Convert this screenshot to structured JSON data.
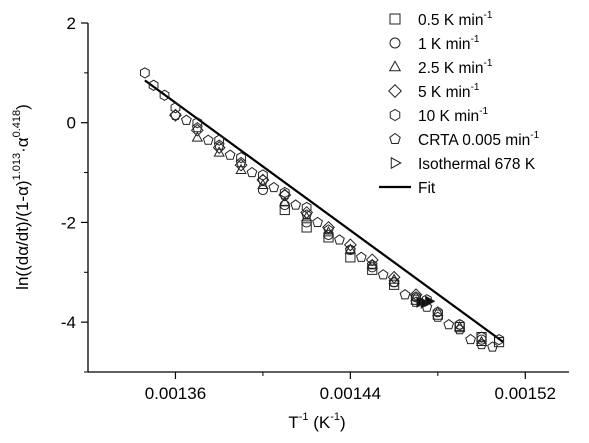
{
  "chart_data": {
    "type": "scatter",
    "title": "",
    "xlabel": {
      "base": "T",
      "sup1": "-1",
      "mid": " (K",
      "sup2": "-1",
      "end": ")"
    },
    "ylabel": {
      "p1": "ln((dα/dt)/(1-α)",
      "s1": "1.013",
      "p2": "·α",
      "s2": "0.418",
      "p3": ")"
    },
    "xlim": [
      0.00132,
      0.00154
    ],
    "ylim": [
      -5,
      2
    ],
    "x_ticks": [
      {
        "value": 0.00136,
        "label": "0.00136"
      },
      {
        "value": 0.00144,
        "label": "0.00144"
      },
      {
        "value": 0.00152,
        "label": "0.00152"
      }
    ],
    "y_ticks": [
      {
        "value": 2,
        "label": "2"
      },
      {
        "value": 0,
        "label": "0"
      },
      {
        "value": -2,
        "label": "-2"
      },
      {
        "value": -4,
        "label": "-4"
      }
    ],
    "grid": false,
    "legend_position": "top-right",
    "legend": [
      {
        "label": "0.5 K min",
        "sup": "-1",
        "marker": "square"
      },
      {
        "label": "1 K min",
        "sup": "-1",
        "marker": "circle"
      },
      {
        "label": "2.5 K min",
        "sup": "-1",
        "marker": "triangle-up"
      },
      {
        "label": "5 K min",
        "sup": "-1",
        "marker": "diamond"
      },
      {
        "label": "10 K min",
        "sup": "-1",
        "marker": "hexagon"
      },
      {
        "label": "CRTA 0.005 min",
        "sup": "-1",
        "marker": "pentagon"
      },
      {
        "label": "Isothermal 678 K",
        "sup": "",
        "marker": "triangle-right"
      },
      {
        "label": "Fit",
        "sup": "",
        "marker": "line"
      }
    ],
    "fit": {
      "x": [
        0.001346,
        0.00151
      ],
      "y": [
        0.85,
        -4.4
      ]
    },
    "series": [
      {
        "name": "0.5 K min-1",
        "marker": "square",
        "x": [
          0.00141,
          0.00142,
          0.00143,
          0.00144,
          0.00145,
          0.00146,
          0.00147,
          0.00148,
          0.00149,
          0.0015,
          0.001508
        ],
        "y": [
          -1.75,
          -2.1,
          -2.3,
          -2.7,
          -2.95,
          -3.25,
          -3.55,
          -3.85,
          -4.1,
          -4.3,
          -4.4
        ]
      },
      {
        "name": "1 K min-1",
        "marker": "circle",
        "x": [
          0.0014,
          0.00141,
          0.00142,
          0.00143,
          0.00144,
          0.00145,
          0.00146,
          0.00147,
          0.00148,
          0.00149,
          0.0015
        ],
        "y": [
          -1.35,
          -1.65,
          -2.0,
          -2.25,
          -2.55,
          -2.9,
          -3.2,
          -3.5,
          -3.8,
          -4.05,
          -4.35
        ]
      },
      {
        "name": "2.5 K min-1",
        "marker": "triangle-up",
        "x": [
          0.00137,
          0.00138,
          0.00139,
          0.0014,
          0.00141,
          0.00142,
          0.00143,
          0.00144,
          0.00145,
          0.00146,
          0.00147,
          0.00148,
          0.00149,
          0.0015
        ],
        "y": [
          -0.3,
          -0.6,
          -0.95,
          -1.25,
          -1.6,
          -1.9,
          -2.2,
          -2.55,
          -2.85,
          -3.15,
          -3.5,
          -3.8,
          -4.1,
          -4.4
        ]
      },
      {
        "name": "5 K min-1",
        "marker": "diamond",
        "x": [
          0.00136,
          0.00137,
          0.00138,
          0.00139,
          0.0014,
          0.00141,
          0.00142,
          0.00143,
          0.00144,
          0.00145,
          0.00146,
          0.00147
        ],
        "y": [
          0.15,
          -0.15,
          -0.5,
          -0.85,
          -1.15,
          -1.45,
          -1.8,
          -2.1,
          -2.45,
          -2.75,
          -3.1,
          -3.45
        ]
      },
      {
        "name": "10 K min-1",
        "marker": "hexagon",
        "x": [
          0.001346,
          0.00135,
          0.001355,
          0.00136,
          0.00137,
          0.00138,
          0.00139,
          0.0014,
          0.00141,
          0.00142,
          0.001475,
          0.00149,
          0.0015,
          0.001508
        ],
        "y": [
          1.0,
          0.75,
          0.55,
          0.3,
          0.0,
          -0.35,
          -0.7,
          -1.05,
          -1.4,
          -1.7,
          -3.55,
          -4.05,
          -4.3,
          -4.35
        ]
      },
      {
        "name": "CRTA 0.005 min-1",
        "marker": "pentagon",
        "x": [
          0.00136,
          0.001365,
          0.00137,
          0.001375,
          0.00138,
          0.001385,
          0.00139,
          0.001395,
          0.0014,
          0.001405,
          0.00141,
          0.001415,
          0.00142,
          0.001425,
          0.00143,
          0.001435,
          0.00144,
          0.001445,
          0.00145,
          0.001455,
          0.00146,
          0.001465,
          0.00147,
          0.001475,
          0.00148,
          0.001485,
          0.00149,
          0.001495,
          0.0015,
          0.001505
        ],
        "y": [
          0.15,
          0.05,
          -0.1,
          -0.35,
          -0.45,
          -0.65,
          -0.8,
          -1.0,
          -1.15,
          -1.3,
          -1.45,
          -1.65,
          -1.85,
          -2.0,
          -2.15,
          -2.35,
          -2.55,
          -2.7,
          -2.85,
          -3.05,
          -3.2,
          -3.45,
          -3.6,
          -3.7,
          -3.9,
          -4.05,
          -4.15,
          -4.35,
          -4.45,
          -4.5
        ]
      },
      {
        "name": "Isothermal 678 K",
        "marker": "triangle-right",
        "x": [
          0.001472,
          0.001474,
          0.001476
        ],
        "y": [
          -3.6,
          -3.62,
          -3.58
        ]
      }
    ]
  }
}
